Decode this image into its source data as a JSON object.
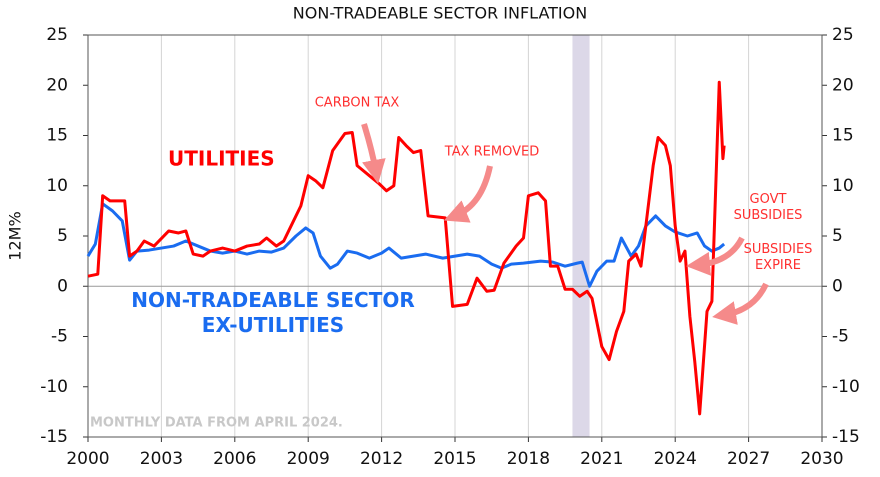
{
  "chart_data": {
    "type": "line",
    "title": "NON-TRADEABLE SECTOR INFLATION",
    "ylabel": "12M%",
    "xlim": [
      2000,
      2030
    ],
    "xticks": [
      2000,
      2003,
      2006,
      2009,
      2012,
      2015,
      2018,
      2021,
      2024,
      2027,
      2030
    ],
    "ylim": [
      -15,
      25
    ],
    "yticks": [
      -15,
      -10,
      -5,
      0,
      5,
      10,
      15,
      20,
      25
    ],
    "y2lim": [
      -15,
      25
    ],
    "y2ticks": [
      -15,
      -10,
      -5,
      0,
      5,
      10,
      15,
      20,
      25
    ],
    "grid": true,
    "shaded_x": [
      2019.8,
      2020.5
    ],
    "shaded_color": "#dcd8e8",
    "series": [
      {
        "name": "UTILITIES",
        "color": "#ff0000",
        "x": [
          2000.0,
          2000.4,
          2000.6,
          2000.9,
          2001.5,
          2001.7,
          2002.0,
          2002.3,
          2002.7,
          2003.3,
          2003.7,
          2004.0,
          2004.3,
          2004.7,
          2005.0,
          2005.5,
          2006.0,
          2006.5,
          2007.0,
          2007.3,
          2007.7,
          2008.0,
          2008.3,
          2008.7,
          2009.0,
          2009.3,
          2009.6,
          2010.0,
          2010.5,
          2010.8,
          2011.0,
          2011.5,
          2011.9,
          2012.2,
          2012.5,
          2012.7,
          2013.0,
          2013.3,
          2013.6,
          2013.9,
          2014.6,
          2014.9,
          2015.5,
          2015.9,
          2016.3,
          2016.6,
          2017.0,
          2017.5,
          2017.8,
          2018.0,
          2018.4,
          2018.7,
          2018.9,
          2019.2,
          2019.5,
          2019.8,
          2020.1,
          2020.4,
          2020.6,
          2021.0,
          2021.3,
          2021.6,
          2021.9,
          2022.1,
          2022.4,
          2022.6,
          2022.8,
          2023.1,
          2023.3,
          2023.6,
          2023.8,
          2024.0,
          2024.2,
          2024.4,
          2024.6,
          2024.8,
          2025.0,
          2025.3,
          2025.5,
          2025.7,
          2025.8,
          2025.95,
          2026.0
        ],
        "values": [
          1,
          1.2,
          9,
          8.5,
          8.5,
          3,
          3.5,
          4.5,
          4,
          5.5,
          5.3,
          5.5,
          3.2,
          3,
          3.5,
          3.8,
          3.5,
          4,
          4.2,
          4.8,
          4,
          4.5,
          6,
          8,
          11,
          10.5,
          9.8,
          13.5,
          15.2,
          15.3,
          12,
          11,
          10.2,
          9.5,
          10,
          14.8,
          14,
          13.3,
          13.5,
          7,
          6.8,
          -2,
          -1.8,
          0.8,
          -0.5,
          -0.4,
          2.3,
          4,
          4.8,
          9,
          9.3,
          8.5,
          2,
          2,
          -0.3,
          -0.3,
          -1,
          -0.5,
          -1.2,
          -6,
          -7.3,
          -4.5,
          -2.5,
          2.5,
          3.2,
          2,
          6,
          12,
          14.8,
          14,
          12,
          6,
          2.5,
          3.5,
          -3,
          -7.5,
          -12.7,
          -2.5,
          -1.5,
          13,
          20.3,
          12.7,
          14
        ]
      },
      {
        "name": "NON-TRADEABLE SECTOR EX-UTILITIES",
        "color": "#1a6cf0",
        "x": [
          2000.0,
          2000.3,
          2000.6,
          2001.0,
          2001.4,
          2001.7,
          2002.0,
          2002.5,
          2003.0,
          2003.5,
          2004.0,
          2004.5,
          2005.0,
          2005.5,
          2006.0,
          2006.5,
          2007.0,
          2007.5,
          2008.0,
          2008.5,
          2008.9,
          2009.2,
          2009.5,
          2009.9,
          2010.2,
          2010.6,
          2011.0,
          2011.5,
          2012.0,
          2012.3,
          2012.8,
          2013.3,
          2013.8,
          2014.5,
          2015.0,
          2015.5,
          2016.0,
          2016.5,
          2016.9,
          2017.3,
          2017.8,
          2018.5,
          2019.0,
          2019.5,
          2020.0,
          2020.2,
          2020.5,
          2020.8,
          2021.2,
          2021.5,
          2021.8,
          2022.2,
          2022.5,
          2022.8,
          2023.2,
          2023.6,
          2024.0,
          2024.5,
          2024.9,
          2025.2,
          2025.5,
          2025.8,
          2026.0
        ],
        "values": [
          3,
          4.2,
          8.2,
          7.5,
          6.5,
          2.6,
          3.5,
          3.6,
          3.8,
          4,
          4.5,
          4,
          3.5,
          3.3,
          3.5,
          3.2,
          3.5,
          3.4,
          3.8,
          5,
          5.8,
          5.3,
          3,
          1.8,
          2.2,
          3.5,
          3.3,
          2.8,
          3.3,
          3.8,
          2.8,
          3,
          3.2,
          2.8,
          3,
          3.2,
          3,
          2.2,
          1.8,
          2.2,
          2.3,
          2.5,
          2.4,
          2,
          2.3,
          2.4,
          0,
          1.5,
          2.5,
          2.5,
          4.8,
          3,
          4,
          6,
          7,
          6,
          5.4,
          5,
          5.3,
          4,
          3.5,
          3.8,
          4.2
        ]
      }
    ],
    "annotations": [
      "CARBON TAX",
      "TAX REMOVED",
      "GOVT SUBSIDIES",
      "SUBSIDIES EXPIRE"
    ],
    "note": "MONTHLY DATA FROM APRIL 2024."
  }
}
